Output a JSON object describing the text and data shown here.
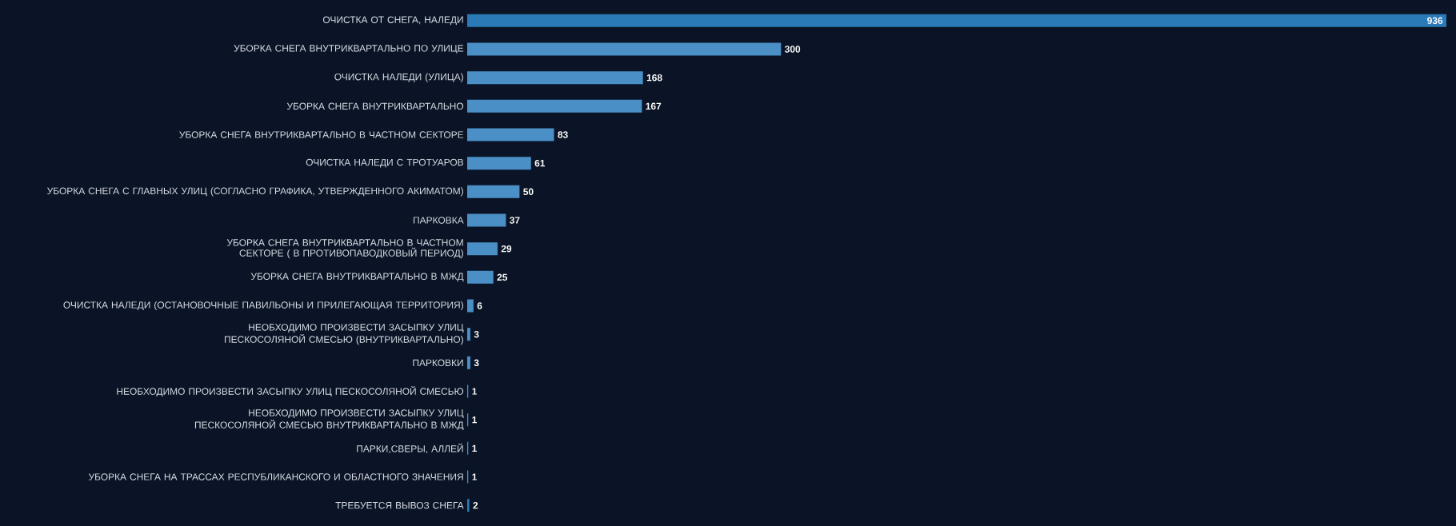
{
  "chart_data": {
    "type": "bar",
    "orientation": "horizontal",
    "data_labels": true,
    "categories": [
      "ОЧИСТКА ОТ СНЕГА, НАЛЕДИ",
      "УБОРКА СНЕГА ВНУТРИКВАРТАЛЬНО ПО УЛИЦЕ",
      "ОЧИСТКА НАЛЕДИ (УЛИЦА)",
      "УБОРКА СНЕГА ВНУТРИКВАРТАЛЬНО",
      "УБОРКА СНЕГА ВНУТРИКВАРТАЛЬНО В ЧАСТНОМ СЕКТОРЕ",
      "ОЧИСТКА НАЛЕДИ С ТРОТУАРОВ",
      "УБОРКА СНЕГА С ГЛАВНЫХ УЛИЦ (СОГЛАСНО ГРАФИКА, УТВЕРЖДЕННОГО АКИМАТОМ)",
      "ПАРКОВКА",
      "УБОРКА СНЕГА ВНУТРИКВАРТАЛЬНО В ЧАСТНОМ СЕКТОРЕ ( В ПРОТИВОПАВОДКОВЫЙ ПЕРИОД)",
      "УБОРКА СНЕГА ВНУТРИКВАРТАЛЬНО В МЖД",
      "ОЧИСТКА НАЛЕДИ (ОСТАНОВОЧНЫЕ ПАВИЛЬОНЫ И ПРИЛЕГАЮЩАЯ ТЕРРИТОРИЯ)",
      "НЕОБХОДИМО ПРОИЗВЕСТИ ЗАСЫПКУ УЛИЦ ПЕСКОСОЛЯНОЙ СМЕСЬЮ (ВНУТРИКВАРТАЛЬНО)",
      "ПАРКОВКИ",
      "НЕОБХОДИМО ПРОИЗВЕСТИ ЗАСЫПКУ УЛИЦ ПЕСКОСОЛЯНОЙ СМЕСЬЮ",
      "НЕОБХОДИМО ПРОИЗВЕСТИ ЗАСЫПКУ УЛИЦ ПЕСКОСОЛЯНОЙ СМЕСЬЮ ВНУТРИКВАРТАЛЬНО В МЖД",
      "ПАРКИ,СВЕРЫ, АЛЛЕЙ",
      "УБОРКА СНЕГА НА ТРАССАХ РЕСПУБЛИКАНСКОГО И ОБЛАСТНОГО ЗНАЧЕНИЯ",
      "ТРЕБУЕТСЯ ВЫВОЗ СНЕГА"
    ],
    "values": [
      936,
      300,
      168,
      167,
      83,
      61,
      50,
      37,
      29,
      25,
      6,
      3,
      3,
      1,
      1,
      1,
      1,
      2
    ],
    "colors": [
      "#2a7ab8",
      "#4a8fc6",
      "#4a8fc6",
      "#4a8fc6",
      "#4a8fc6",
      "#4a8fc6",
      "#4a8fc6",
      "#4a8fc6",
      "#4a8fc6",
      "#4a8fc6",
      "#4a8fc6",
      "#4a8fc6",
      "#4a8fc6",
      "#4a8fc6",
      "#4a8fc6",
      "#4a8fc6",
      "#4a8fc6",
      "#2a7ab8"
    ]
  }
}
